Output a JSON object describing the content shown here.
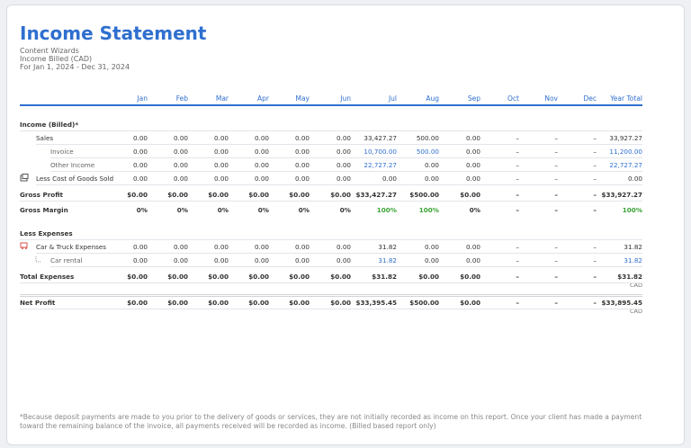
{
  "header": {
    "title": "Income Statement",
    "company": "Content Wizards",
    "basis": "Income Billed (CAD)",
    "period": "For Jan 1, 2024 - Dec 31, 2024"
  },
  "table": {
    "columns": [
      "Jan",
      "Feb",
      "Mar",
      "Apr",
      "May",
      "Jun",
      "Jul",
      "Aug",
      "Sep",
      "Oct",
      "Nov",
      "Dec",
      "Year Total"
    ],
    "income": {
      "heading": "Income (Billed)*",
      "rows": [
        {
          "label": "Sales",
          "values": [
            "0.00",
            "0.00",
            "0.00",
            "0.00",
            "0.00",
            "0.00",
            "33,427.27",
            "500.00",
            "0.00",
            "–",
            "–",
            "–",
            "33,927.27"
          ]
        },
        {
          "label": "Invoice",
          "values": [
            "0.00",
            "0.00",
            "0.00",
            "0.00",
            "0.00",
            "0.00",
            "10,700.00",
            "500.00",
            "0.00",
            "–",
            "–",
            "–",
            "11,200.00"
          ]
        },
        {
          "label": "Other Income",
          "values": [
            "0.00",
            "0.00",
            "0.00",
            "0.00",
            "0.00",
            "0.00",
            "22,727.27",
            "0.00",
            "0.00",
            "–",
            "–",
            "–",
            "22,727.27"
          ]
        },
        {
          "label": "Less Cost of Goods Sold",
          "values": [
            "0.00",
            "0.00",
            "0.00",
            "0.00",
            "0.00",
            "0.00",
            "0.00",
            "0.00",
            "0.00",
            "–",
            "–",
            "–",
            "0.00"
          ]
        }
      ]
    },
    "gross_profit": {
      "label": "Gross Profit",
      "values": [
        "$0.00",
        "$0.00",
        "$0.00",
        "$0.00",
        "$0.00",
        "$0.00",
        "$33,427.27",
        "$500.00",
        "$0.00",
        "–",
        "–",
        "–",
        "$33,927.27"
      ]
    },
    "gross_margin": {
      "label": "Gross Margin",
      "values": [
        "0%",
        "0%",
        "0%",
        "0%",
        "0%",
        "0%",
        "100%",
        "100%",
        "0%",
        "–",
        "–",
        "–",
        "100%"
      ]
    },
    "expenses": {
      "heading": "Less Expenses",
      "rows": [
        {
          "label": "Car & Truck Expenses",
          "values": [
            "0.00",
            "0.00",
            "0.00",
            "0.00",
            "0.00",
            "0.00",
            "31.82",
            "0.00",
            "0.00",
            "–",
            "–",
            "–",
            "31.82"
          ]
        },
        {
          "label": "Car rental",
          "values": [
            "0.00",
            "0.00",
            "0.00",
            "0.00",
            "0.00",
            "0.00",
            "31.82",
            "0.00",
            "0.00",
            "–",
            "–",
            "–",
            "31.82"
          ]
        }
      ]
    },
    "total_expenses": {
      "label": "Total Expenses",
      "values": [
        "$0.00",
        "$0.00",
        "$0.00",
        "$0.00",
        "$0.00",
        "$0.00",
        "$31.82",
        "$0.00",
        "$0.00",
        "–",
        "–",
        "–",
        "$31.82"
      ],
      "currency": "CAD"
    },
    "net_profit": {
      "label": "Net Profit",
      "values": [
        "$0.00",
        "$0.00",
        "$0.00",
        "$0.00",
        "$0.00",
        "$0.00",
        "$33,395.45",
        "$500.00",
        "$0.00",
        "–",
        "–",
        "–",
        "$33,895.45"
      ],
      "currency": "CAD"
    }
  },
  "footnote": "*Because deposit payments are made to you prior to the delivery of goods or services, they are not initially recorded as income on this report. Once your client has made a payment toward the remaining balance of the invoice, all payments received will be recorded as income. (Billed based report only)"
}
